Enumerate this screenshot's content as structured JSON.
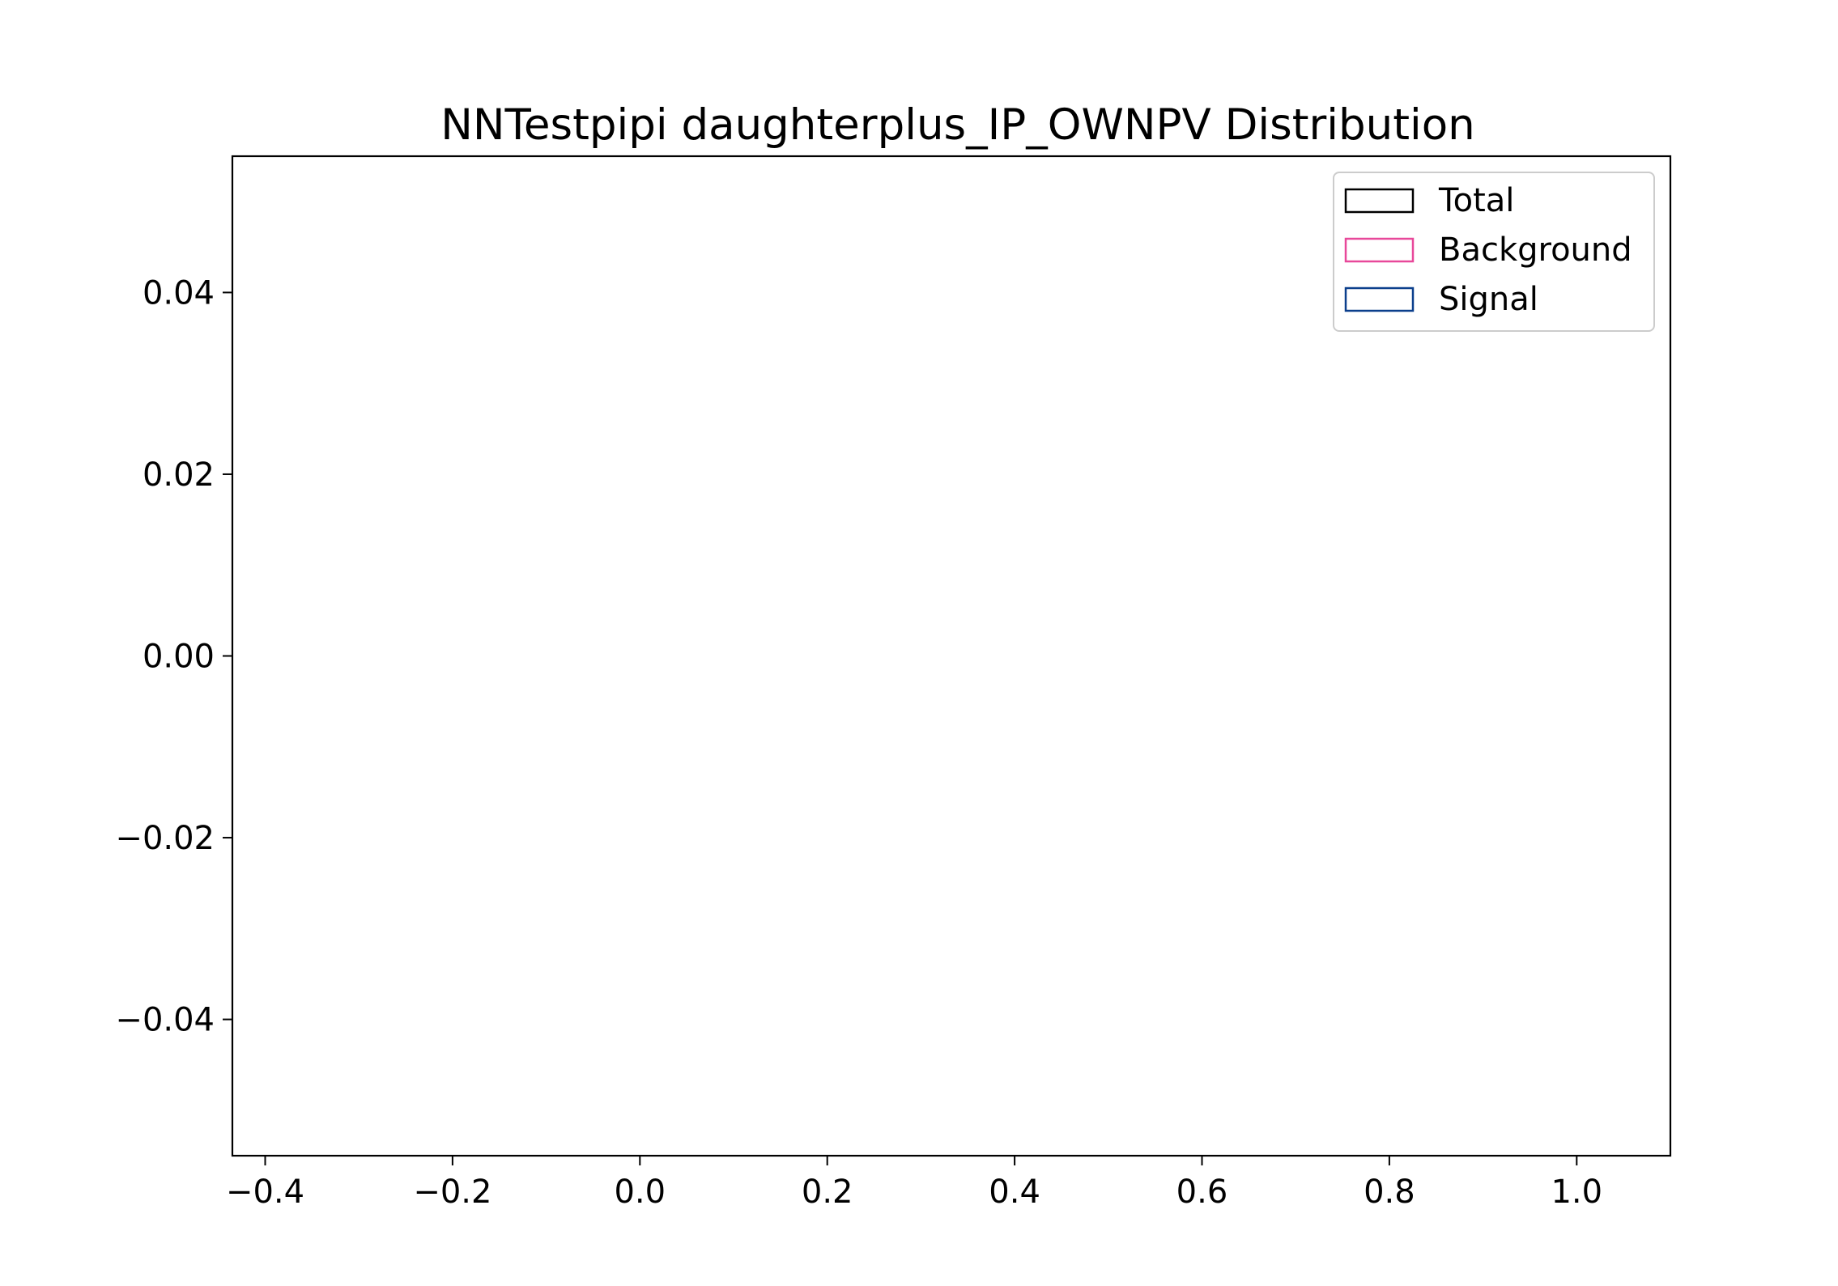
{
  "chart_data": {
    "type": "bar",
    "title": "NNTestpipi daughterplus_IP_OWNPV Distribution",
    "xlabel": "",
    "ylabel": "",
    "xlim": [
      -0.435,
      1.1
    ],
    "ylim": [
      -0.055,
      0.055
    ],
    "x_ticks": [
      -0.4,
      -0.2,
      0.0,
      0.2,
      0.4,
      0.6,
      0.8,
      1.0
    ],
    "x_tick_labels": [
      "−0.4",
      "−0.2",
      "0.0",
      "0.2",
      "0.4",
      "0.6",
      "0.8",
      "1.0"
    ],
    "y_ticks": [
      -0.04,
      -0.02,
      0.0,
      0.02,
      0.04
    ],
    "y_tick_labels": [
      "−0.04",
      "−0.02",
      "0.00",
      "0.02",
      "0.04"
    ],
    "grid": false,
    "legend_position": "top-right",
    "series": [
      {
        "name": "Total",
        "color": "#000000",
        "values": []
      },
      {
        "name": "Background",
        "color": "#e8489a",
        "values": []
      },
      {
        "name": "Signal",
        "color": "#0b3f8c",
        "values": []
      }
    ]
  }
}
